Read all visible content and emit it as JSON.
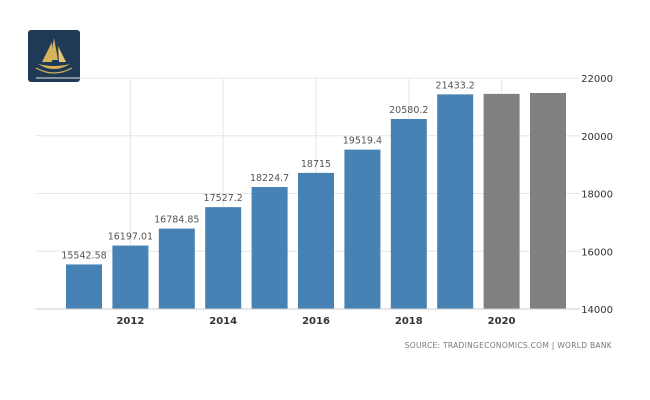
{
  "logo": {
    "icon": "sailing-ship-logo-icon",
    "background": "#1f3a57",
    "accent": "#d9b35a"
  },
  "source": "SOURCE: TRADINGECONOMICS.COM  |  WORLD BANK",
  "colors": {
    "bar": "#4682b4",
    "forecast_bar": "#808080",
    "grid": "#e6e6e6"
  },
  "chart_data": {
    "type": "bar",
    "x": [
      2011,
      2012,
      2013,
      2014,
      2015,
      2016,
      2017,
      2018,
      2019,
      2020,
      2021
    ],
    "values": [
      15542.58,
      16197.01,
      16784.85,
      17527.2,
      18224.7,
      18715,
      19519.4,
      20580.2,
      21433.2,
      21450,
      21480
    ],
    "data_labels": [
      "15542.58",
      "16197.01",
      "16784.85",
      "17527.2",
      "18224.7",
      "18715",
      "19519.4",
      "20580.2",
      "21433.2",
      "",
      ""
    ],
    "forecast": [
      false,
      false,
      false,
      false,
      false,
      false,
      false,
      false,
      false,
      true,
      true
    ],
    "x_tick_labels": [
      "2012",
      "2014",
      "2016",
      "2018",
      "2020"
    ],
    "x_tick_values": [
      2012,
      2014,
      2016,
      2018,
      2020
    ],
    "y_ticks": [
      14000,
      16000,
      18000,
      20000,
      22000
    ],
    "ylim": [
      14000,
      22000
    ],
    "y_axis_position": "right",
    "grid": true,
    "title": "",
    "xlabel": "",
    "ylabel": ""
  }
}
